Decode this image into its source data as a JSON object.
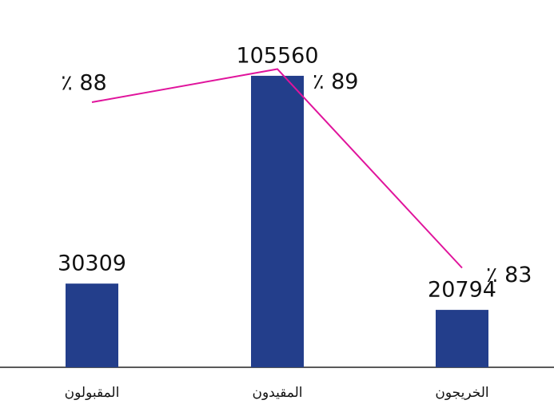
{
  "chart_data": {
    "type": "bar",
    "categories": [
      "المقبولون",
      "المقيدون",
      "الخريجون"
    ],
    "series": [
      {
        "type": "bar",
        "color": "#233e8b",
        "values": [
          30309,
          105560,
          20794
        ]
      },
      {
        "type": "line",
        "axis": "y2",
        "color": "#e0149c",
        "values": [
          88,
          89,
          83
        ],
        "value_labels": [
          "٪ 88",
          "٪ 89",
          "٪ 83"
        ]
      }
    ],
    "ylim": [
      0,
      120000
    ],
    "y2lim": [
      80,
      90
    ]
  }
}
